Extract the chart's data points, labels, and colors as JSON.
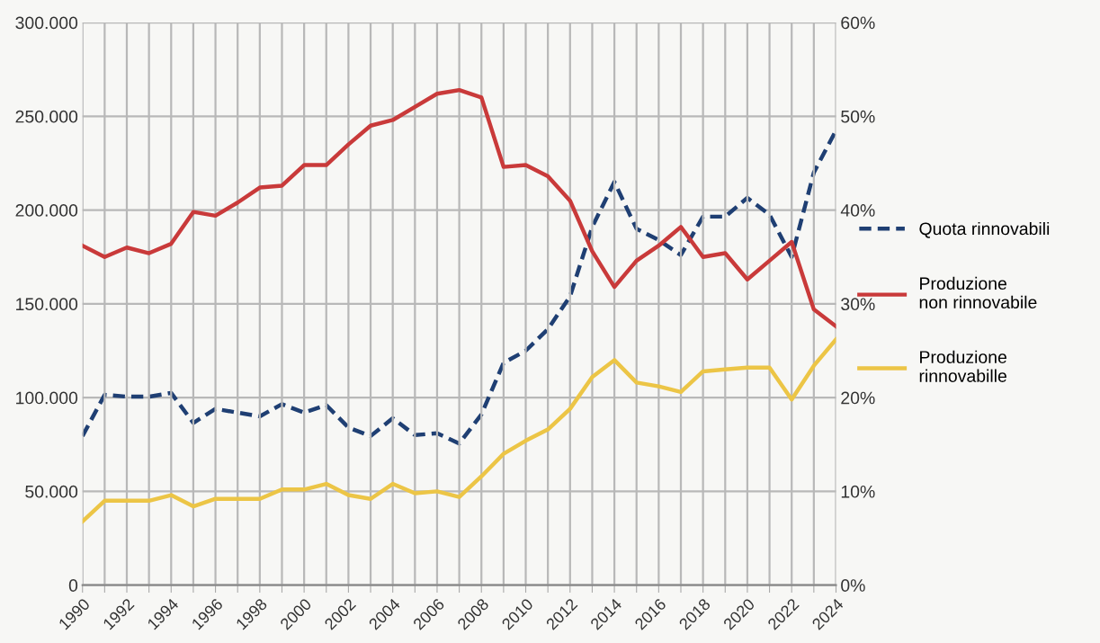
{
  "chart_data": {
    "type": "line",
    "x": [
      1990,
      1991,
      1992,
      1993,
      1994,
      1995,
      1996,
      1997,
      1998,
      1999,
      2000,
      2001,
      2002,
      2003,
      2004,
      2005,
      2006,
      2007,
      2008,
      2009,
      2010,
      2011,
      2012,
      2013,
      2014,
      2015,
      2016,
      2017,
      2018,
      2019,
      2020,
      2021,
      2022,
      2023,
      2024
    ],
    "series": [
      {
        "name": "Quota rinnovabili",
        "color": "#1f3f73",
        "axis": "y2",
        "line_style": "dashed",
        "values": [
          15.9,
          20.3,
          20.1,
          20.1,
          20.5,
          17.3,
          18.8,
          18.4,
          18.0,
          19.3,
          18.4,
          19.2,
          16.8,
          15.9,
          17.8,
          16.0,
          16.2,
          15.1,
          18.2,
          23.7,
          25.0,
          27.3,
          30.8,
          38.2,
          43.0,
          38.0,
          36.8,
          35.2,
          39.3,
          39.3,
          41.3,
          39.5,
          35.0,
          44.0,
          48.5
        ]
      },
      {
        "name": "Produzione\nnon rinnovabile",
        "color": "#c93a3a",
        "line_style": "solid",
        "values": [
          181000,
          175000,
          180000,
          177000,
          182000,
          199000,
          197000,
          204000,
          212000,
          213000,
          224000,
          224000,
          235000,
          245000,
          248000,
          255000,
          262000,
          264000,
          260000,
          223000,
          224000,
          218000,
          205000,
          178000,
          159000,
          173000,
          181000,
          191000,
          175000,
          177000,
          163000,
          173000,
          183000,
          147000,
          138000
        ]
      },
      {
        "name": "Produzione\nrinnovabille",
        "color": "#ecc546",
        "line_style": "solid",
        "values": [
          34000,
          45000,
          45000,
          45000,
          48000,
          42000,
          46000,
          46000,
          46000,
          51000,
          51000,
          54000,
          48000,
          46000,
          54000,
          49000,
          50000,
          47000,
          58000,
          70000,
          77000,
          83000,
          94000,
          111000,
          120000,
          108000,
          106000,
          103000,
          114000,
          115000,
          116000,
          116000,
          99000,
          117000,
          131000
        ]
      }
    ],
    "xlim": [
      1990,
      2024
    ],
    "xticks": [
      1990,
      {
        "value": 1991,
        "label": null
      },
      1992,
      {
        "value": 1993,
        "label": null
      },
      1994,
      {
        "value": 1995,
        "label": null
      },
      1996,
      {
        "value": 1997,
        "label": null
      },
      1998,
      {
        "value": 1999,
        "label": null
      },
      2000,
      {
        "value": 2001,
        "label": null
      },
      2002,
      {
        "value": 2003,
        "label": null
      },
      2004,
      {
        "value": 2005,
        "label": null
      },
      2006,
      {
        "value": 2007,
        "label": null
      },
      2008,
      {
        "value": 2009,
        "label": null
      },
      2010,
      {
        "value": 2011,
        "label": null
      },
      2012,
      {
        "value": 2013,
        "label": null
      },
      2014,
      {
        "value": 2015,
        "label": null
      },
      2016,
      {
        "value": 2017,
        "label": null
      },
      2018,
      {
        "value": 2019,
        "label": null
      },
      2020,
      {
        "value": 2021,
        "label": null
      },
      2022,
      {
        "value": 2023,
        "label": null
      },
      2024
    ],
    "ylim": [
      0,
      300000
    ],
    "yticks": [
      0,
      {
        "value": 50000,
        "label": "50.000"
      },
      {
        "value": 100000,
        "label": "100.000"
      },
      {
        "value": 150000,
        "label": "150.000"
      },
      {
        "value": 200000,
        "label": "200.000"
      },
      {
        "value": 250000,
        "label": "250.000"
      },
      {
        "value": 300000,
        "label": "300.000"
      }
    ],
    "y2lim": [
      0,
      60
    ],
    "y2ticks": [
      {
        "value": 0,
        "label": "0%"
      },
      {
        "value": 10,
        "label": "10%"
      },
      {
        "value": 20,
        "label": "20%"
      },
      {
        "value": 30,
        "label": "30%"
      },
      {
        "value": 40,
        "label": "40%"
      },
      {
        "value": 50,
        "label": "50%"
      },
      {
        "value": 60,
        "label": "60%"
      }
    ],
    "grid": true,
    "legend": "right"
  }
}
